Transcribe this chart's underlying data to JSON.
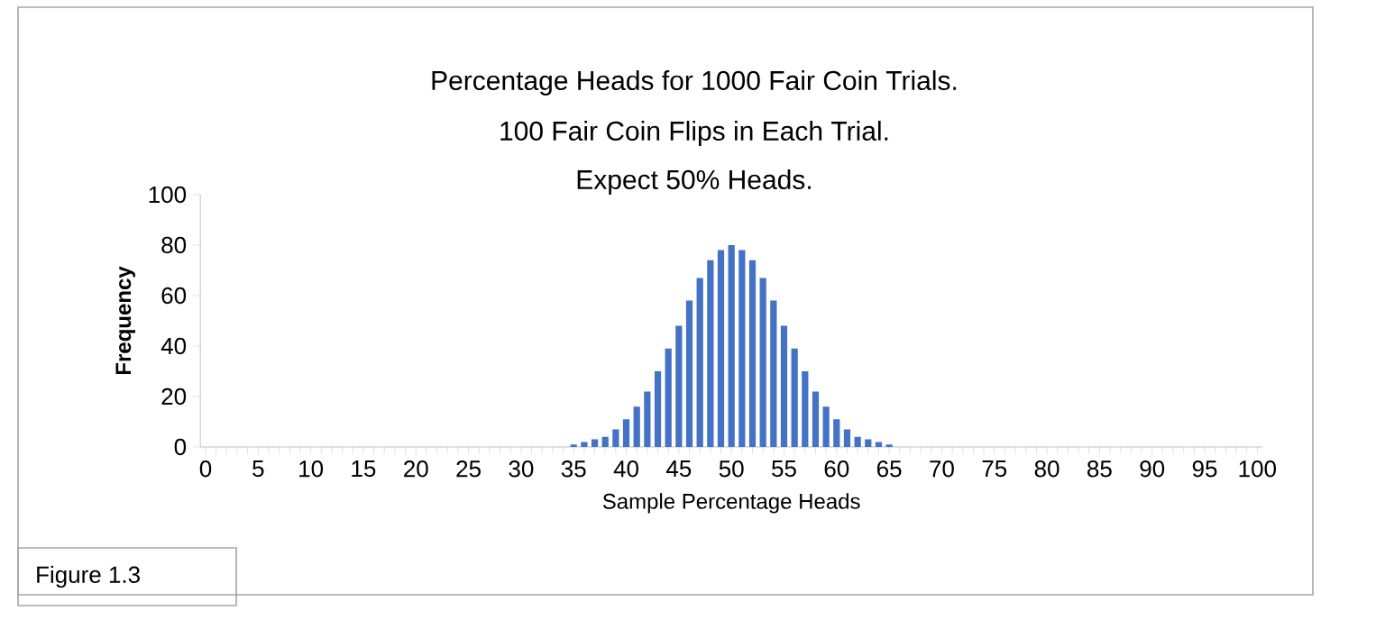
{
  "chart_data": {
    "type": "bar",
    "title": "Percentage Heads for 1000 Fair Coin Trials.",
    "subtitle": "100 Fair Coin Flips in Each Trial.",
    "xlabel": "Sample Percentage Heads",
    "ylabel": "Frequency",
    "annotations": [
      "Expect 50% Heads.",
      "Figure 1.3"
    ],
    "categories": [
      "0",
      null,
      null,
      null,
      null,
      "5",
      null,
      null,
      null,
      null,
      "10",
      null,
      null,
      null,
      null,
      "15",
      null,
      null,
      null,
      null,
      "20",
      null,
      null,
      null,
      null,
      "25",
      null,
      null,
      null,
      null,
      "30",
      null,
      null,
      null,
      null,
      "35",
      null,
      null,
      null,
      null,
      "40",
      null,
      null,
      null,
      null,
      "45",
      null,
      null,
      null,
      null,
      "50",
      null,
      null,
      null,
      null,
      "55",
      null,
      null,
      null,
      null,
      "60",
      null,
      null,
      null,
      null,
      "65",
      null,
      null,
      null,
      null,
      "70",
      null,
      null,
      null,
      null,
      "75",
      null,
      null,
      null,
      null,
      "80",
      null,
      null,
      null,
      null,
      "85",
      null,
      null,
      null,
      null,
      "90",
      null,
      null,
      null,
      null,
      "95",
      null,
      null,
      null,
      null,
      "100"
    ],
    "values": [
      0,
      0,
      0,
      0,
      0,
      0,
      0,
      0,
      0,
      0,
      0,
      0,
      0,
      0,
      0,
      0,
      0,
      0,
      0,
      0,
      0,
      0,
      0,
      0,
      0,
      0,
      0,
      0,
      0,
      0,
      0,
      0,
      0,
      0,
      0,
      1,
      2,
      3,
      4,
      7,
      11,
      16,
      22,
      30,
      39,
      48,
      58,
      67,
      74,
      78,
      80,
      78,
      74,
      67,
      58,
      48,
      39,
      30,
      22,
      16,
      11,
      7,
      4,
      3,
      2,
      1,
      0,
      0,
      0,
      0,
      0,
      0,
      0,
      0,
      0,
      0,
      0,
      0,
      0,
      0,
      0,
      0,
      0,
      0,
      0,
      0,
      0,
      0,
      0,
      0,
      0,
      0,
      0,
      0,
      0,
      0,
      0,
      0,
      0,
      0,
      0
    ],
    "color": "#4472c4",
    "ylim": [
      0,
      100
    ],
    "yticks": [
      0,
      20,
      40,
      60,
      80,
      100
    ]
  }
}
